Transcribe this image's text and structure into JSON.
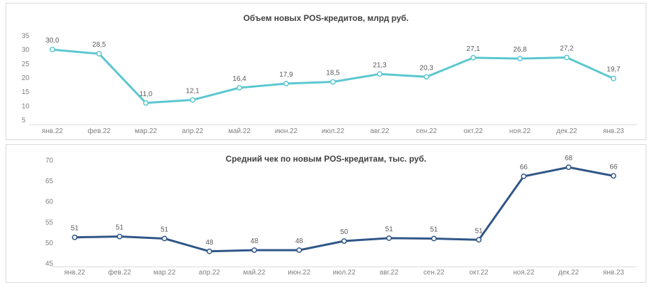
{
  "chart_data": [
    {
      "type": "line",
      "title": "Объем новых POS-кредитов, млрд руб.",
      "categories": [
        "янв.22",
        "фев.22",
        "мар.22",
        "апр.22",
        "май.22",
        "июн.22",
        "июл.22",
        "авг.22",
        "сен.22",
        "окт.22",
        "ноя.22",
        "дек.22",
        "янв.23"
      ],
      "values": [
        30.0,
        28.5,
        11.0,
        12.1,
        16.4,
        17.9,
        18.5,
        21.3,
        20.3,
        27.1,
        26.8,
        27.2,
        19.7
      ],
      "data_labels": [
        "30,0",
        "28,5",
        "11,0",
        "12,1",
        "16,4",
        "17,9",
        "18,5",
        "21,3",
        "20,3",
        "27,1",
        "26,8",
        "27,2",
        "19,7"
      ],
      "ylim": [
        5,
        35
      ],
      "yticks": [
        5,
        10,
        15,
        20,
        25,
        30,
        35
      ],
      "xlabel": "",
      "ylabel": "",
      "grid": false,
      "line_color": "#5bc7d0"
    },
    {
      "type": "line",
      "title": "Средний чек по новым POS-кредитам, тыс. руб.",
      "categories": [
        "янв.22",
        "фев.22",
        "мар.22",
        "апр.22",
        "май.22",
        "июн.22",
        "июл.22",
        "авг.22",
        "сен.22",
        "окт.22",
        "ноя.22",
        "дек.22",
        "янв.23"
      ],
      "values": [
        51.3,
        51.5,
        51.0,
        47.9,
        48.2,
        48.2,
        50.4,
        51.1,
        51.0,
        50.7,
        66.1,
        68.3,
        66.2
      ],
      "data_labels": [
        "51",
        "51",
        "51",
        "48",
        "48",
        "48",
        "50",
        "51",
        "51",
        "51",
        "66",
        "68",
        "66"
      ],
      "ylim": [
        45,
        70
      ],
      "yticks": [
        45,
        50,
        55,
        60,
        65,
        70
      ],
      "xlabel": "",
      "ylabel": "",
      "grid": false,
      "line_color": "#2f5687"
    }
  ]
}
